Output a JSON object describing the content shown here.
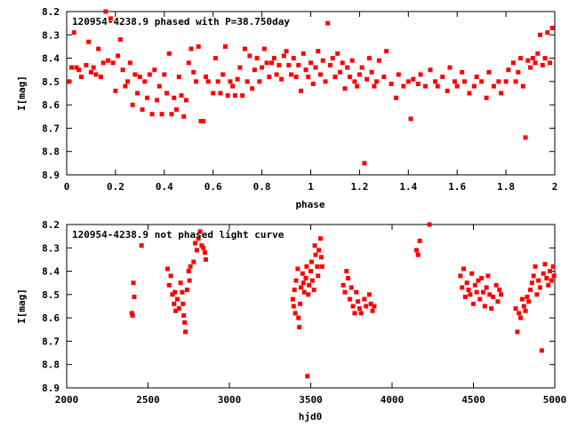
{
  "chart_data": [
    {
      "type": "scatter",
      "title": "120954-4238.9 phased with P=38.750day",
      "xlabel": "phase",
      "ylabel": "I[mag]",
      "xlim": [
        0,
        2
      ],
      "ylim": [
        8.9,
        8.2
      ],
      "y_inverted": true,
      "x_ticks": [
        "0",
        "0.2",
        "0.4",
        "0.6",
        "0.8",
        "1",
        "1.2",
        "1.4",
        "1.6",
        "1.8",
        "2"
      ],
      "y_ticks": [
        "8.2",
        "8.3",
        "8.4",
        "8.5",
        "8.6",
        "8.7",
        "8.8",
        "8.9"
      ],
      "marker_color": "#ff0000",
      "points": [
        [
          0.01,
          8.5
        ],
        [
          0.02,
          8.44
        ],
        [
          0.03,
          8.29
        ],
        [
          0.04,
          8.44
        ],
        [
          0.05,
          8.45
        ],
        [
          0.06,
          8.48
        ],
        [
          0.08,
          8.43
        ],
        [
          0.09,
          8.33
        ],
        [
          0.1,
          8.46
        ],
        [
          0.11,
          8.44
        ],
        [
          0.12,
          8.47
        ],
        [
          0.13,
          8.36
        ],
        [
          0.14,
          8.48
        ],
        [
          0.15,
          8.42
        ],
        [
          0.16,
          8.2
        ],
        [
          0.17,
          8.41
        ],
        [
          0.18,
          8.23
        ],
        [
          0.19,
          8.42
        ],
        [
          0.2,
          8.54
        ],
        [
          0.21,
          8.39
        ],
        [
          0.22,
          8.32
        ],
        [
          0.23,
          8.45
        ],
        [
          0.24,
          8.52
        ],
        [
          0.25,
          8.5
        ],
        [
          0.26,
          8.42
        ],
        [
          0.27,
          8.6
        ],
        [
          0.28,
          8.47
        ],
        [
          0.29,
          8.55
        ],
        [
          0.3,
          8.48
        ],
        [
          0.31,
          8.62
        ],
        [
          0.32,
          8.5
        ],
        [
          0.33,
          8.57
        ],
        [
          0.34,
          8.47
        ],
        [
          0.35,
          8.64
        ],
        [
          0.36,
          8.45
        ],
        [
          0.37,
          8.58
        ],
        [
          0.38,
          8.52
        ],
        [
          0.39,
          8.64
        ],
        [
          0.4,
          8.47
        ],
        [
          0.41,
          8.55
        ],
        [
          0.42,
          8.38
        ],
        [
          0.43,
          8.64
        ],
        [
          0.44,
          8.57
        ],
        [
          0.45,
          8.62
        ],
        [
          0.46,
          8.48
        ],
        [
          0.47,
          8.56
        ],
        [
          0.48,
          8.65
        ],
        [
          0.49,
          8.58
        ],
        [
          0.5,
          8.42
        ],
        [
          0.51,
          8.36
        ],
        [
          0.52,
          8.46
        ],
        [
          0.53,
          8.5
        ],
        [
          0.54,
          8.35
        ],
        [
          0.55,
          8.67
        ],
        [
          0.56,
          8.67
        ],
        [
          0.57,
          8.48
        ],
        [
          0.58,
          8.5
        ],
        [
          0.6,
          8.55
        ],
        [
          0.61,
          8.4
        ],
        [
          0.62,
          8.5
        ],
        [
          0.63,
          8.55
        ],
        [
          0.64,
          8.47
        ],
        [
          0.65,
          8.35
        ],
        [
          0.66,
          8.56
        ],
        [
          0.67,
          8.5
        ],
        [
          0.68,
          8.52
        ],
        [
          0.69,
          8.56
        ],
        [
          0.7,
          8.49
        ],
        [
          0.71,
          8.44
        ],
        [
          0.72,
          8.56
        ],
        [
          0.73,
          8.36
        ],
        [
          0.74,
          8.5
        ],
        [
          0.75,
          8.39
        ],
        [
          0.76,
          8.53
        ],
        [
          0.77,
          8.45
        ],
        [
          0.78,
          8.4
        ],
        [
          0.79,
          8.5
        ],
        [
          0.8,
          8.44
        ],
        [
          0.81,
          8.36
        ],
        [
          0.82,
          8.42
        ],
        [
          0.83,
          8.48
        ],
        [
          0.84,
          8.42
        ],
        [
          0.85,
          8.4
        ],
        [
          0.86,
          8.47
        ],
        [
          0.87,
          8.43
        ],
        [
          0.88,
          8.49
        ],
        [
          0.89,
          8.39
        ],
        [
          0.9,
          8.37
        ],
        [
          0.91,
          8.43
        ],
        [
          0.92,
          8.47
        ],
        [
          0.93,
          8.4
        ],
        [
          0.94,
          8.48
        ],
        [
          0.95,
          8.43
        ],
        [
          0.96,
          8.54
        ],
        [
          0.97,
          8.38
        ],
        [
          0.98,
          8.45
        ],
        [
          0.99,
          8.48
        ],
        [
          1.0,
          8.42
        ],
        [
          1.01,
          8.51
        ],
        [
          1.02,
          8.44
        ],
        [
          1.03,
          8.37
        ],
        [
          1.04,
          8.47
        ],
        [
          1.05,
          8.41
        ],
        [
          1.06,
          8.5
        ],
        [
          1.07,
          8.25
        ],
        [
          1.08,
          8.43
        ],
        [
          1.09,
          8.4
        ],
        [
          1.1,
          8.48
        ],
        [
          1.11,
          8.38
        ],
        [
          1.12,
          8.46
        ],
        [
          1.13,
          8.42
        ],
        [
          1.14,
          8.53
        ],
        [
          1.15,
          8.44
        ],
        [
          1.16,
          8.48
        ],
        [
          1.17,
          8.41
        ],
        [
          1.18,
          8.5
        ],
        [
          1.19,
          8.52
        ],
        [
          1.2,
          8.47
        ],
        [
          1.21,
          8.44
        ],
        [
          1.22,
          8.85
        ],
        [
          1.23,
          8.49
        ],
        [
          1.24,
          8.4
        ],
        [
          1.25,
          8.46
        ],
        [
          1.26,
          8.52
        ],
        [
          1.27,
          8.5
        ],
        [
          1.28,
          8.41
        ],
        [
          1.3,
          8.48
        ],
        [
          1.31,
          8.37
        ],
        [
          1.33,
          8.51
        ],
        [
          1.35,
          8.57
        ],
        [
          1.36,
          8.47
        ],
        [
          1.38,
          8.52
        ],
        [
          1.4,
          8.5
        ],
        [
          1.41,
          8.66
        ],
        [
          1.42,
          8.49
        ],
        [
          1.44,
          8.51
        ],
        [
          1.45,
          8.47
        ],
        [
          1.47,
          8.52
        ],
        [
          1.49,
          8.45
        ],
        [
          1.51,
          8.5
        ],
        [
          1.52,
          8.52
        ],
        [
          1.54,
          8.48
        ],
        [
          1.56,
          8.54
        ],
        [
          1.57,
          8.44
        ],
        [
          1.59,
          8.5
        ],
        [
          1.6,
          8.52
        ],
        [
          1.62,
          8.46
        ],
        [
          1.63,
          8.5
        ],
        [
          1.65,
          8.55
        ],
        [
          1.67,
          8.52
        ],
        [
          1.68,
          8.48
        ],
        [
          1.7,
          8.5
        ],
        [
          1.72,
          8.57
        ],
        [
          1.73,
          8.46
        ],
        [
          1.75,
          8.52
        ],
        [
          1.77,
          8.5
        ],
        [
          1.78,
          8.55
        ],
        [
          1.8,
          8.5
        ],
        [
          1.81,
          8.45
        ],
        [
          1.83,
          8.42
        ],
        [
          1.84,
          8.5
        ],
        [
          1.85,
          8.46
        ],
        [
          1.86,
          8.4
        ],
        [
          1.87,
          8.52
        ],
        [
          1.88,
          8.74
        ],
        [
          1.89,
          8.41
        ],
        [
          1.9,
          8.44
        ],
        [
          1.91,
          8.4
        ],
        [
          1.92,
          8.42
        ],
        [
          1.93,
          8.38
        ],
        [
          1.94,
          8.3
        ],
        [
          1.95,
          8.43
        ],
        [
          1.96,
          8.4
        ],
        [
          1.97,
          8.29
        ],
        [
          1.98,
          8.42
        ],
        [
          1.99,
          8.27
        ]
      ]
    },
    {
      "type": "scatter",
      "title": "120954-4238.9 not phased light curve",
      "xlabel": "hjd0",
      "ylabel": "I[mag]",
      "xlim": [
        2000,
        5000
      ],
      "ylim": [
        8.9,
        8.2
      ],
      "y_inverted": true,
      "x_ticks": [
        "2000",
        "2500",
        "3000",
        "3500",
        "4000",
        "4500",
        "5000"
      ],
      "y_ticks": [
        "8.2",
        "8.3",
        "8.4",
        "8.5",
        "8.6",
        "8.7",
        "8.8",
        "8.9"
      ],
      "marker_color": "#ff0000",
      "points": [
        [
          2400,
          8.58
        ],
        [
          2405,
          8.59
        ],
        [
          2410,
          8.45
        ],
        [
          2415,
          8.51
        ],
        [
          2460,
          8.29
        ],
        [
          2620,
          8.39
        ],
        [
          2630,
          8.46
        ],
        [
          2640,
          8.42
        ],
        [
          2650,
          8.5
        ],
        [
          2660,
          8.54
        ],
        [
          2665,
          8.49
        ],
        [
          2670,
          8.57
        ],
        [
          2680,
          8.52
        ],
        [
          2690,
          8.56
        ],
        [
          2700,
          8.45
        ],
        [
          2710,
          8.49
        ],
        [
          2715,
          8.54
        ],
        [
          2720,
          8.59
        ],
        [
          2725,
          8.62
        ],
        [
          2730,
          8.66
        ],
        [
          2740,
          8.48
        ],
        [
          2750,
          8.4
        ],
        [
          2755,
          8.44
        ],
        [
          2760,
          8.38
        ],
        [
          2780,
          8.36
        ],
        [
          2790,
          8.28
        ],
        [
          2800,
          8.31
        ],
        [
          2810,
          8.26
        ],
        [
          2820,
          8.23
        ],
        [
          2830,
          8.29
        ],
        [
          2840,
          8.3
        ],
        [
          2850,
          8.32
        ],
        [
          2855,
          8.35
        ],
        [
          3390,
          8.52
        ],
        [
          3395,
          8.55
        ],
        [
          3400,
          8.48
        ],
        [
          3405,
          8.58
        ],
        [
          3410,
          8.44
        ],
        [
          3420,
          8.39
        ],
        [
          3425,
          8.6
        ],
        [
          3430,
          8.64
        ],
        [
          3435,
          8.54
        ],
        [
          3440,
          8.47
        ],
        [
          3450,
          8.41
        ],
        [
          3455,
          8.45
        ],
        [
          3460,
          8.49
        ],
        [
          3470,
          8.43
        ],
        [
          3475,
          8.38
        ],
        [
          3480,
          8.85
        ],
        [
          3485,
          8.5
        ],
        [
          3490,
          8.46
        ],
        [
          3500,
          8.4
        ],
        [
          3505,
          8.36
        ],
        [
          3510,
          8.44
        ],
        [
          3520,
          8.48
        ],
        [
          3525,
          8.29
        ],
        [
          3530,
          8.33
        ],
        [
          3540,
          8.38
        ],
        [
          3545,
          8.42
        ],
        [
          3550,
          8.31
        ],
        [
          3560,
          8.26
        ],
        [
          3565,
          8.34
        ],
        [
          3570,
          8.38
        ],
        [
          3700,
          8.46
        ],
        [
          3710,
          8.49
        ],
        [
          3720,
          8.4
        ],
        [
          3730,
          8.43
        ],
        [
          3740,
          8.52
        ],
        [
          3750,
          8.47
        ],
        [
          3760,
          8.55
        ],
        [
          3770,
          8.58
        ],
        [
          3780,
          8.49
        ],
        [
          3790,
          8.53
        ],
        [
          3800,
          8.56
        ],
        [
          3810,
          8.58
        ],
        [
          3830,
          8.52
        ],
        [
          3840,
          8.55
        ],
        [
          3860,
          8.5
        ],
        [
          3870,
          8.54
        ],
        [
          3880,
          8.57
        ],
        [
          3890,
          8.55
        ],
        [
          4150,
          8.31
        ],
        [
          4160,
          8.33
        ],
        [
          4170,
          8.27
        ],
        [
          4230,
          8.2
        ],
        [
          4420,
          8.42
        ],
        [
          4430,
          8.47
        ],
        [
          4440,
          8.39
        ],
        [
          4450,
          8.51
        ],
        [
          4460,
          8.45
        ],
        [
          4470,
          8.48
        ],
        [
          4480,
          8.5
        ],
        [
          4490,
          8.41
        ],
        [
          4500,
          8.54
        ],
        [
          4510,
          8.46
        ],
        [
          4520,
          8.49
        ],
        [
          4530,
          8.44
        ],
        [
          4540,
          8.52
        ],
        [
          4550,
          8.43
        ],
        [
          4560,
          8.49
        ],
        [
          4570,
          8.55
        ],
        [
          4580,
          8.47
        ],
        [
          4590,
          8.42
        ],
        [
          4600,
          8.5
        ],
        [
          4610,
          8.56
        ],
        [
          4620,
          8.51
        ],
        [
          4640,
          8.46
        ],
        [
          4650,
          8.53
        ],
        [
          4660,
          8.48
        ],
        [
          4670,
          8.5
        ],
        [
          4760,
          8.56
        ],
        [
          4770,
          8.66
        ],
        [
          4780,
          8.58
        ],
        [
          4790,
          8.6
        ],
        [
          4800,
          8.52
        ],
        [
          4810,
          8.55
        ],
        [
          4820,
          8.57
        ],
        [
          4830,
          8.51
        ],
        [
          4840,
          8.53
        ],
        [
          4850,
          8.48
        ],
        [
          4860,
          8.45
        ],
        [
          4870,
          8.42
        ],
        [
          4880,
          8.38
        ],
        [
          4890,
          8.5
        ],
        [
          4900,
          8.44
        ],
        [
          4910,
          8.47
        ],
        [
          4920,
          8.74
        ],
        [
          4930,
          8.41
        ],
        [
          4940,
          8.37
        ],
        [
          4950,
          8.43
        ],
        [
          4960,
          8.46
        ],
        [
          4970,
          8.4
        ],
        [
          4980,
          8.44
        ],
        [
          4990,
          8.38
        ],
        [
          4995,
          8.42
        ]
      ]
    }
  ]
}
